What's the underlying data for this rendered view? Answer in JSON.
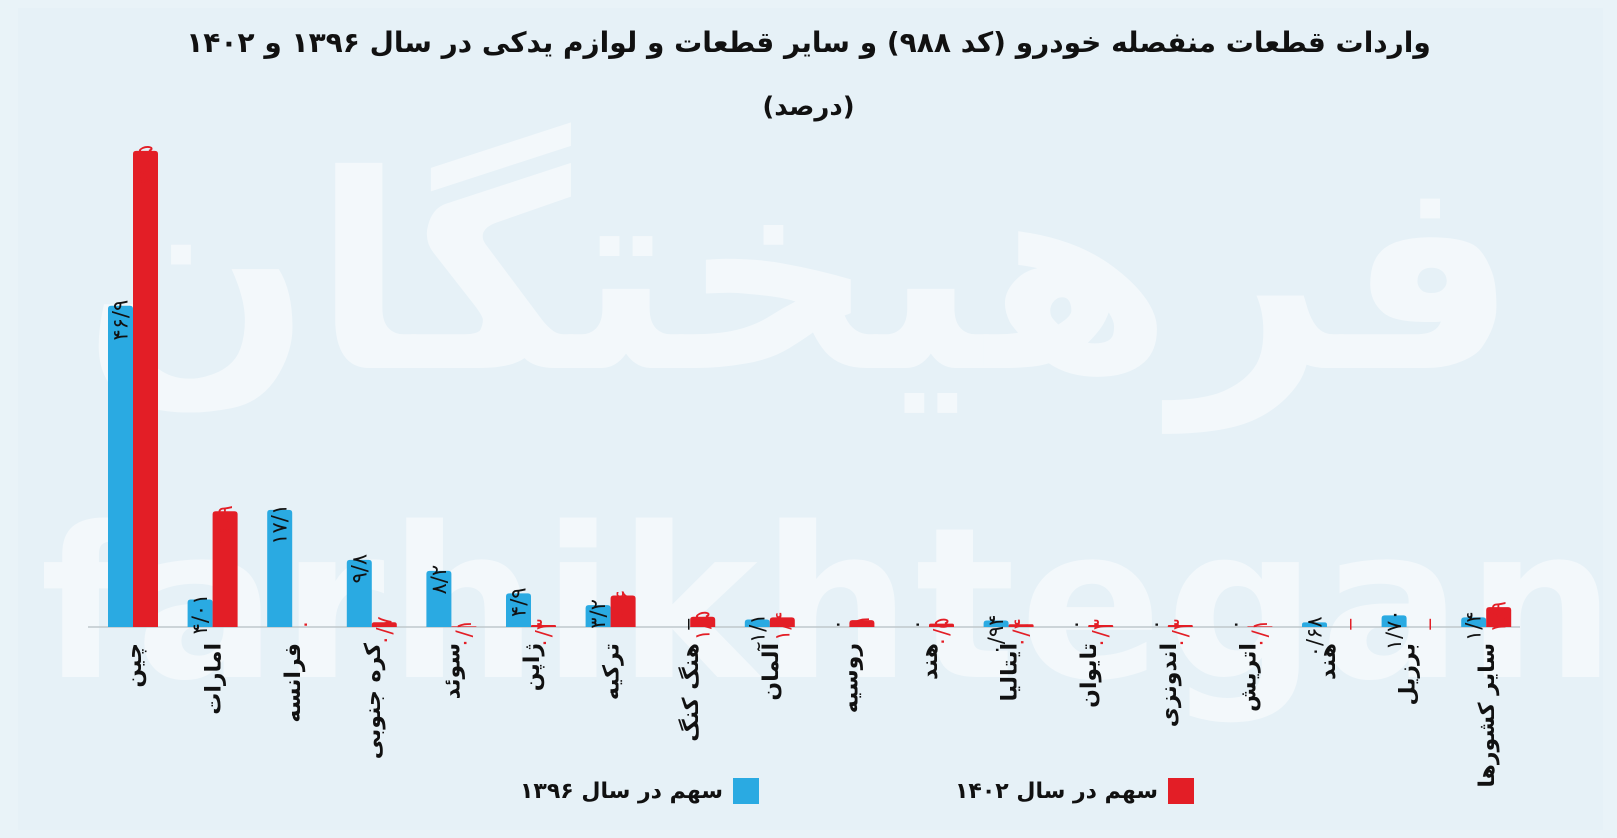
{
  "title": "واردات قطعات منفصله خودرو (کد ۹۸۸) و سایر قطعات و لوازم یدکی در سال ۱۳۹۶ و ۱۴۰۲",
  "subtitle": "(درصد)",
  "watermark": {
    "fa": "فرهیختگان",
    "en": "farhikhtegan"
  },
  "colors": {
    "s1396": "#2aaae2",
    "s1402": "#e31e26",
    "label1396": "#111111",
    "label1402": "#e31e26",
    "baseline": "#bfc7cc"
  },
  "chart_data": {
    "type": "bar",
    "title": "واردات قطعات منفصله خودرو (کد ۹۸۸) و سایر قطعات و لوازم یدکی در سال ۱۳۹۶ و ۱۴۰۲",
    "subtitle": "(درصد)",
    "categories": [
      "چین",
      "امارات",
      "فرانسه",
      "کره جنوبی",
      "سوئد",
      "ژاپن",
      "ترکیه",
      "هنگ کنگ",
      "آلمان",
      "روسیه",
      "هند",
      "ایتالیا",
      "تایوان",
      "اندونزی",
      "اتریش",
      "هند",
      "برزیل",
      "سایر کشورها"
    ],
    "series": [
      {
        "name": "سهم در سال ۱۳۹۶",
        "values": [
          46.9,
          4.01,
          17.1,
          9.8,
          8.2,
          4.9,
          3.2,
          null,
          1.1,
          0,
          0,
          0.94,
          0,
          0,
          0,
          0.68,
          1.7,
          1.4
        ],
        "labels": [
          "۴۶/۹",
          "۴/۰۱",
          "۱۷/۱",
          "۹/۸",
          "۸/۲",
          "۴/۹",
          "۳/۲",
          "_",
          "۱/۱",
          "۰",
          "۰",
          "۰/۹۴",
          "۰",
          "۰",
          "۰",
          "۰/۶۸",
          "۱/۷۰",
          "۱/۴"
        ]
      },
      {
        "name": "سهم در سال ۱۴۰۲",
        "values": [
          69.5,
          16.9,
          0,
          0.7,
          0.1,
          0.3,
          4.6,
          1.5,
          1.4,
          1,
          0.5,
          0.4,
          0.3,
          0.3,
          0.1,
          null,
          null,
          2.9
        ],
        "labels": [
          "۶۹/۵",
          "۱۶/۹",
          "۰",
          "۰/۷",
          "۰/۱",
          "۰/۳",
          "۴/۶",
          "۱/۵",
          "۱/۴",
          "۱",
          "۰/۵",
          "۰/۴",
          "۰/۳",
          "۰/۳",
          "۰/۱",
          "_",
          "_",
          "۲/۹"
        ]
      }
    ],
    "ylim": [
      0,
      70
    ],
    "legend_position": "bottom"
  }
}
